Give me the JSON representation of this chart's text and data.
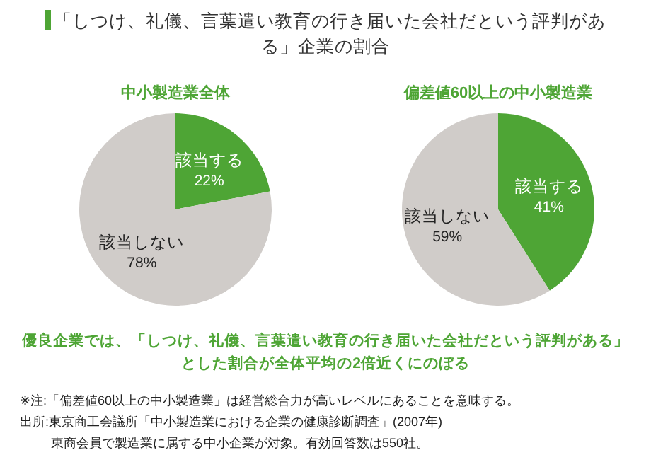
{
  "chart_data": [
    {
      "type": "other",
      "title": "「しつけ、礼儀、言葉遣い教育の行き届いた会社だという評判がある」企業の割合",
      "color": "#4ea535"
    },
    {
      "type": "pie",
      "title": "中小製造業全体",
      "categories": [
        "該当する",
        "該当しない"
      ],
      "values": [
        22,
        78
      ],
      "colors": [
        "#4ea535",
        "#d0ccc9"
      ],
      "value_labels": [
        "22%",
        "78%"
      ]
    },
    {
      "type": "pie",
      "title": "偏差値60以上の中小製造業",
      "categories": [
        "該当する",
        "該当しない"
      ],
      "values": [
        41,
        59
      ],
      "colors": [
        "#4ea535",
        "#d0ccc9"
      ],
      "value_labels": [
        "41%",
        "59%"
      ]
    },
    {
      "type": "other",
      "annotations": [
        "優良企業では、「しつけ、礼儀、言葉遣い教育の行き届いた会社だという評判がある」とした割合が全体平均の2倍近くにのぼる",
        "※注:「偏差値60以上の中小製造業」は経営総合力が高いレベルにあることを意味する。",
        "出所:東京商工会議所「中小製造業における企業の健康診断調査」(2007年)\n東商会員で製造業に属する中小企業が対象。有効回答数は550社。"
      ]
    }
  ]
}
